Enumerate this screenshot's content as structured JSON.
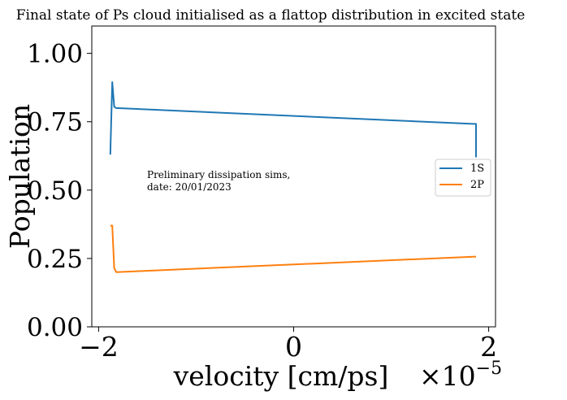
{
  "chart_data": {
    "type": "line",
    "title": "Final state of Ps cloud initialised as a flattop distribution in excited state",
    "xlabel": "velocity [cm/ps]",
    "x_offset_label": "×10",
    "x_offset_exponent": "−5",
    "ylabel": "Population",
    "xlim": [
      -2.07,
      2.07
    ],
    "ylim": [
      0.0,
      1.1
    ],
    "x_ticks": [
      -2,
      0,
      2
    ],
    "x_tick_labels": [
      "−2",
      "0",
      "2"
    ],
    "y_ticks": [
      0.0,
      0.25,
      0.5,
      0.75,
      1.0
    ],
    "y_tick_labels": [
      "0.00",
      "0.25",
      "0.50",
      "0.75",
      "1.00"
    ],
    "grid": false,
    "legend_position": "center-right",
    "annotation": [
      "Preliminary dissipation sims,",
      "date: 20/01/2023"
    ],
    "series": [
      {
        "name": "1S",
        "color": "#1f77b4",
        "x": [
          -1.88,
          -1.86,
          -1.84,
          -1.82,
          1.84,
          1.87,
          1.87
        ],
        "y": [
          0.63,
          0.895,
          0.805,
          0.8,
          0.742,
          0.742,
          0.62
        ]
      },
      {
        "name": "2P",
        "color": "#ff7f0e",
        "x": [
          -1.88,
          -1.86,
          -1.84,
          -1.82,
          1.87
        ],
        "y": [
          0.37,
          0.37,
          0.215,
          0.2,
          0.257
        ]
      }
    ]
  }
}
